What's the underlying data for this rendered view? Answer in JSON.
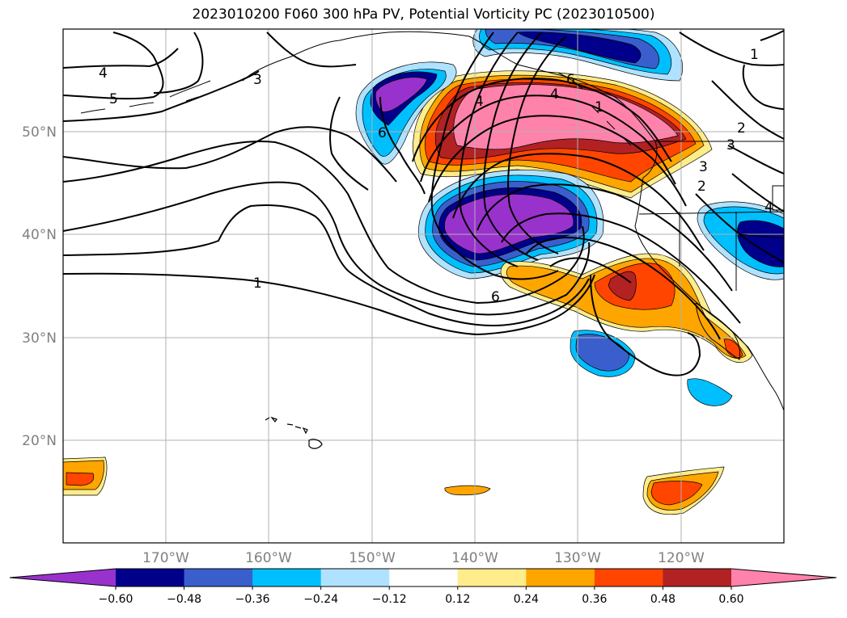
{
  "title": "2023010200 F060 300 hPa PV, Potential Vorticity PC (2023010500)",
  "latitude_labels": [
    "50°N",
    "40°N",
    "30°N",
    "20°N"
  ],
  "longitude_labels": [
    "170°W",
    "160°W",
    "150°W",
    "140°W",
    "130°W",
    "120°W"
  ],
  "contour_labels": [
    "4",
    "5",
    "3",
    "6",
    "4",
    "1",
    "6",
    "1",
    "2",
    "3",
    "2",
    "3",
    "4",
    "1",
    "6",
    "4"
  ],
  "colorbar": {
    "ticks": [
      "−0.60",
      "−0.48",
      "−0.36",
      "−0.24",
      "−0.12",
      "0.12",
      "0.24",
      "0.36",
      "0.48",
      "0.60"
    ],
    "colors": [
      "#9932cc",
      "#00008b",
      "#3a5fcd",
      "#00bfff",
      "#b0e2ff",
      "#ffffff",
      "#ffec8b",
      "#ffa500",
      "#ff4500",
      "#b22222",
      "#ff82ab"
    ]
  }
}
